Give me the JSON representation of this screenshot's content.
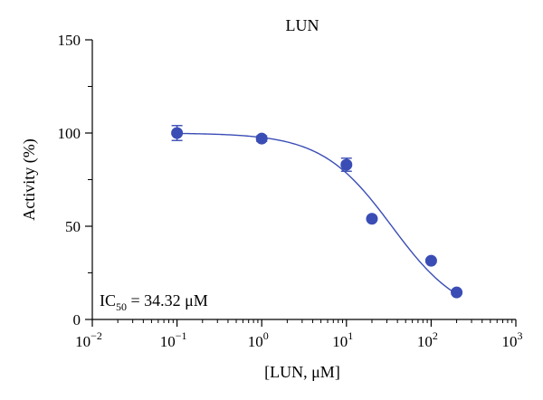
{
  "chart_data": {
    "type": "scatter",
    "title": "LUN",
    "xlabel": "[LUN, μM]",
    "ylabel": "Activity (%)",
    "x_scale": "log",
    "xlim": [
      0.01,
      1000
    ],
    "ylim": [
      0,
      150
    ],
    "x_ticks": [
      {
        "value": 0.01,
        "base": "10",
        "exp": "−2"
      },
      {
        "value": 0.1,
        "base": "10",
        "exp": "−1"
      },
      {
        "value": 1,
        "base": "10",
        "exp": "0"
      },
      {
        "value": 10,
        "base": "10",
        "exp": "1"
      },
      {
        "value": 100,
        "base": "10",
        "exp": "2"
      },
      {
        "value": 1000,
        "base": "10",
        "exp": "3"
      }
    ],
    "y_ticks": [
      {
        "value": 0,
        "label": "0"
      },
      {
        "value": 50,
        "label": "50"
      },
      {
        "value": 100,
        "label": "100"
      },
      {
        "value": 150,
        "label": "150"
      }
    ],
    "grid": false,
    "marker_color": "#3a4db5",
    "series": [
      {
        "points": [
          {
            "x": 0.1,
            "y": 100,
            "err": 4
          },
          {
            "x": 1,
            "y": 97,
            "err": 1.5
          },
          {
            "x": 10,
            "y": 83,
            "err": 3.5
          },
          {
            "x": 20,
            "y": 54,
            "err": 1
          },
          {
            "x": 100,
            "y": 31.5,
            "err": 1
          },
          {
            "x": 200,
            "y": 14.5,
            "err": 1
          }
        ]
      }
    ],
    "fit_curve": {
      "top": 100,
      "bottom": 0,
      "ic50": 34.32,
      "hill": 1.05
    },
    "annotation": {
      "prefix": "IC",
      "subscript": "50",
      "suffix": " = 34.32 μM"
    }
  }
}
